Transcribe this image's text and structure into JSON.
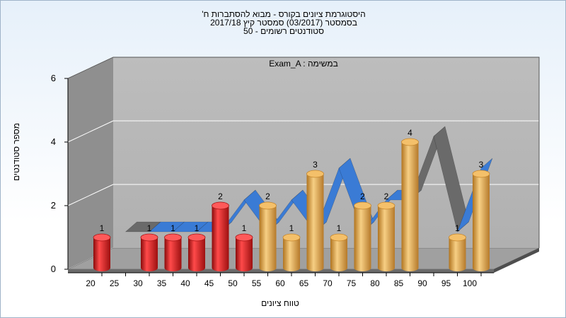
{
  "chart_data": {
    "type": "bar",
    "title_lines": [
      "היסטוגרמת ציונים בקורס - מבוא להסתברות ח'",
      "בסמסטר  (03/2017)  סמסטר קיץ  2017/18",
      "סטודנטים רשומים - 50"
    ],
    "xlabel": "טווח ציונים",
    "ylabel": "מספר סטודנטים",
    "annotation": "Exam_A : במשימה",
    "ylim": [
      0,
      6
    ],
    "y_ticks": [
      "0",
      "2",
      "4",
      "6"
    ],
    "x_ticks": [
      "20",
      "25",
      "30",
      "35",
      "40",
      "45",
      "50",
      "55",
      "60",
      "65",
      "70",
      "75",
      "80",
      "85",
      "90",
      "95",
      "100"
    ],
    "categories": [
      "20",
      "30",
      "35",
      "40",
      "45",
      "50",
      "55",
      "60",
      "65",
      "70",
      "75",
      "80",
      "85",
      "95",
      "100"
    ],
    "values": [
      1,
      1,
      1,
      1,
      2,
      1,
      2,
      1,
      3,
      1,
      2,
      2,
      4,
      1,
      3
    ],
    "bar_colors": [
      "red",
      "red",
      "red",
      "red",
      "red",
      "red",
      "gold",
      "gold",
      "gold",
      "gold",
      "gold",
      "gold",
      "gold",
      "gold",
      "gold"
    ],
    "ribbon": {
      "x": [
        25,
        30,
        35,
        40,
        45,
        50,
        55,
        60,
        65,
        70,
        75,
        80,
        85,
        90,
        95,
        100
      ],
      "values": [
        1,
        1,
        1,
        1,
        1,
        2,
        1,
        2,
        1,
        3,
        1,
        2,
        2,
        4,
        1,
        3
      ]
    },
    "colors": {
      "red": "#e02020",
      "gold": "#e8a840",
      "ribbon_blue": "#3a7bd5",
      "ribbon_gray": "#6a6a6a",
      "back_wall": "#bdbdbd",
      "side_wall": "#8f8f8f",
      "floor": "#a0a0a0"
    }
  }
}
